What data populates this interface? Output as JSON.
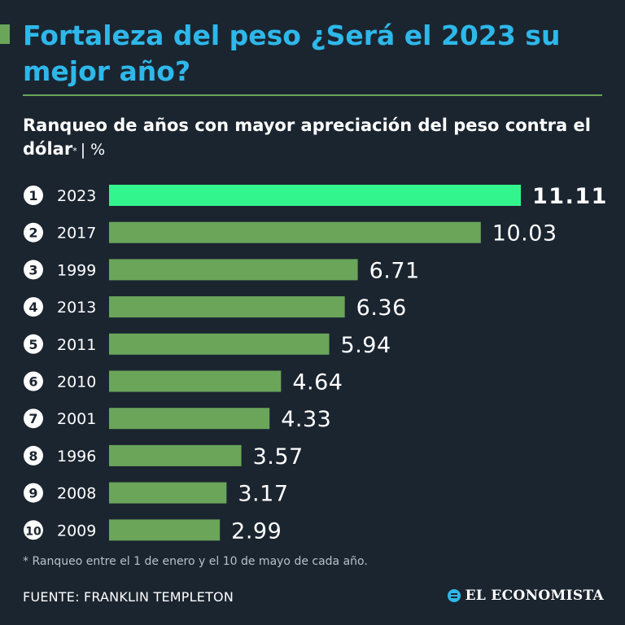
{
  "title": "Fortaleza del peso ¿Será el 2023 su mejor año?",
  "subtitle_main": "Ranqueo de años con mayor apreciación del peso contra el dólar",
  "subtitle_asterisk": "*",
  "subtitle_unit": "| %",
  "footnote": "* Ranqueo entre el 1 de enero y el 10 de mayo de cada año.",
  "source": "FUENTE: FRANKLIN TEMPLETON",
  "logo_text": "EL ECONOMISTA",
  "colors": {
    "background": "#1b2530",
    "title": "#2eb8ea",
    "bar_highlight": "#33f58e",
    "bar_default": "#6aa55a",
    "rank_circle": "#ffffff",
    "rank_text": "#1b2530"
  },
  "chart_data": {
    "type": "bar",
    "orientation": "horizontal",
    "title": "Ranqueo de años con mayor apreciación del peso contra el dólar",
    "unit": "%",
    "ranks": [
      "1",
      "2",
      "3",
      "4",
      "5",
      "6",
      "7",
      "8",
      "9",
      "10"
    ],
    "categories": [
      "2023",
      "2017",
      "1999",
      "2013",
      "2011",
      "2010",
      "2001",
      "1996",
      "2008",
      "2009"
    ],
    "values": [
      11.11,
      10.03,
      6.71,
      6.36,
      5.94,
      4.64,
      4.33,
      3.57,
      3.17,
      2.99
    ],
    "value_labels": [
      "11.11",
      "10.03",
      "6.71",
      "6.36",
      "5.94",
      "4.64",
      "4.33",
      "3.57",
      "3.17",
      "2.99"
    ],
    "highlight_index": 0,
    "xlim": [
      0,
      11.11
    ]
  }
}
